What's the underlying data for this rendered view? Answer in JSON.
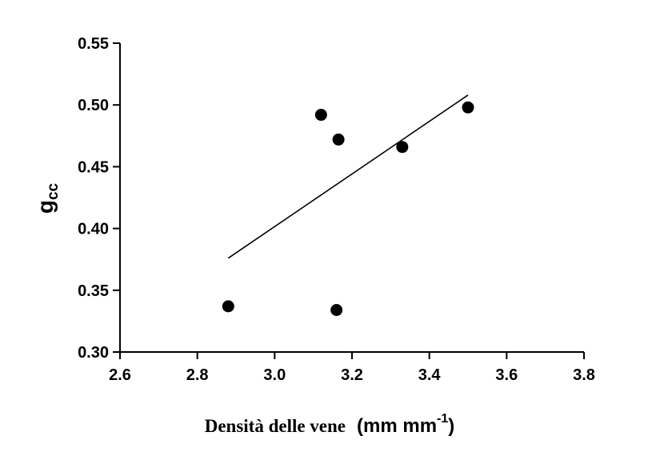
{
  "chart_data": {
    "type": "scatter",
    "title": "",
    "xlabel": {
      "text": "Densità delle vene",
      "unit_prefix": "(mm mm",
      "unit_superscript": "-1",
      "unit_suffix": ")"
    },
    "ylabel": {
      "base": "g",
      "subscript": "cc"
    },
    "xlim": [
      2.6,
      3.8
    ],
    "ylim": [
      0.3,
      0.55
    ],
    "x_ticks": [
      "2.6",
      "2.8",
      "3.0",
      "3.2",
      "3.4",
      "3.6",
      "3.8"
    ],
    "y_ticks": [
      "0.30",
      "0.35",
      "0.40",
      "0.45",
      "0.50",
      "0.55"
    ],
    "grid": false,
    "series": [
      {
        "points": [
          {
            "x": 2.88,
            "y": 0.337
          },
          {
            "x": 3.12,
            "y": 0.492
          },
          {
            "x": 3.165,
            "y": 0.472
          },
          {
            "x": 3.16,
            "y": 0.334
          },
          {
            "x": 3.33,
            "y": 0.466
          },
          {
            "x": 3.5,
            "y": 0.498
          }
        ]
      }
    ],
    "trendline": {
      "x": [
        2.88,
        3.5
      ],
      "y": [
        0.376,
        0.508
      ]
    }
  }
}
